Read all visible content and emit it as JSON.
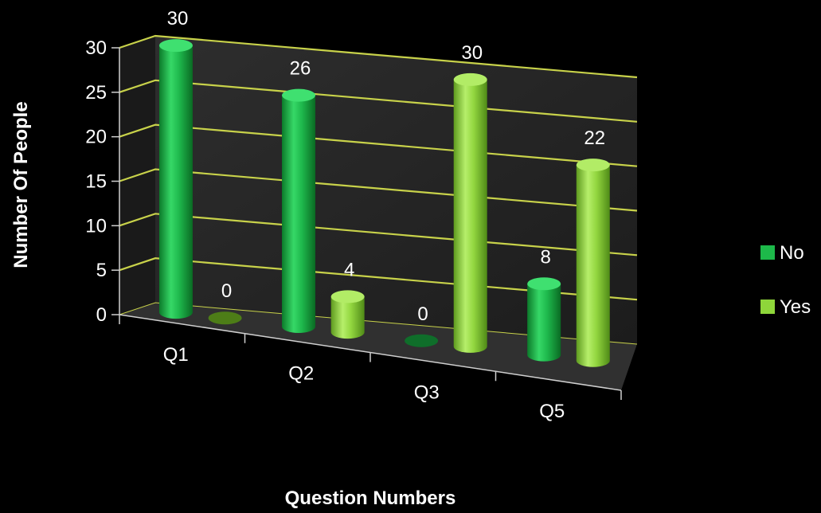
{
  "chart_data": {
    "type": "bar",
    "style": "3d-cylinder",
    "categories": [
      "Q1",
      "Q2",
      "Q3",
      "Q5"
    ],
    "series": [
      {
        "name": "No",
        "values": [
          30,
          26,
          0,
          8
        ],
        "color": "#1db94a"
      },
      {
        "name": "Yes",
        "values": [
          0,
          4,
          30,
          22
        ],
        "color": "#8ed63a"
      }
    ],
    "xlabel": "Question Numbers",
    "ylabel": "Number Of People",
    "ylim": [
      0,
      30
    ],
    "yticks": [
      0,
      5,
      10,
      15,
      20,
      25,
      30
    ],
    "grid": true,
    "gridline_color": "#c8d24a",
    "wall_color": "#262626",
    "legend": "right"
  }
}
